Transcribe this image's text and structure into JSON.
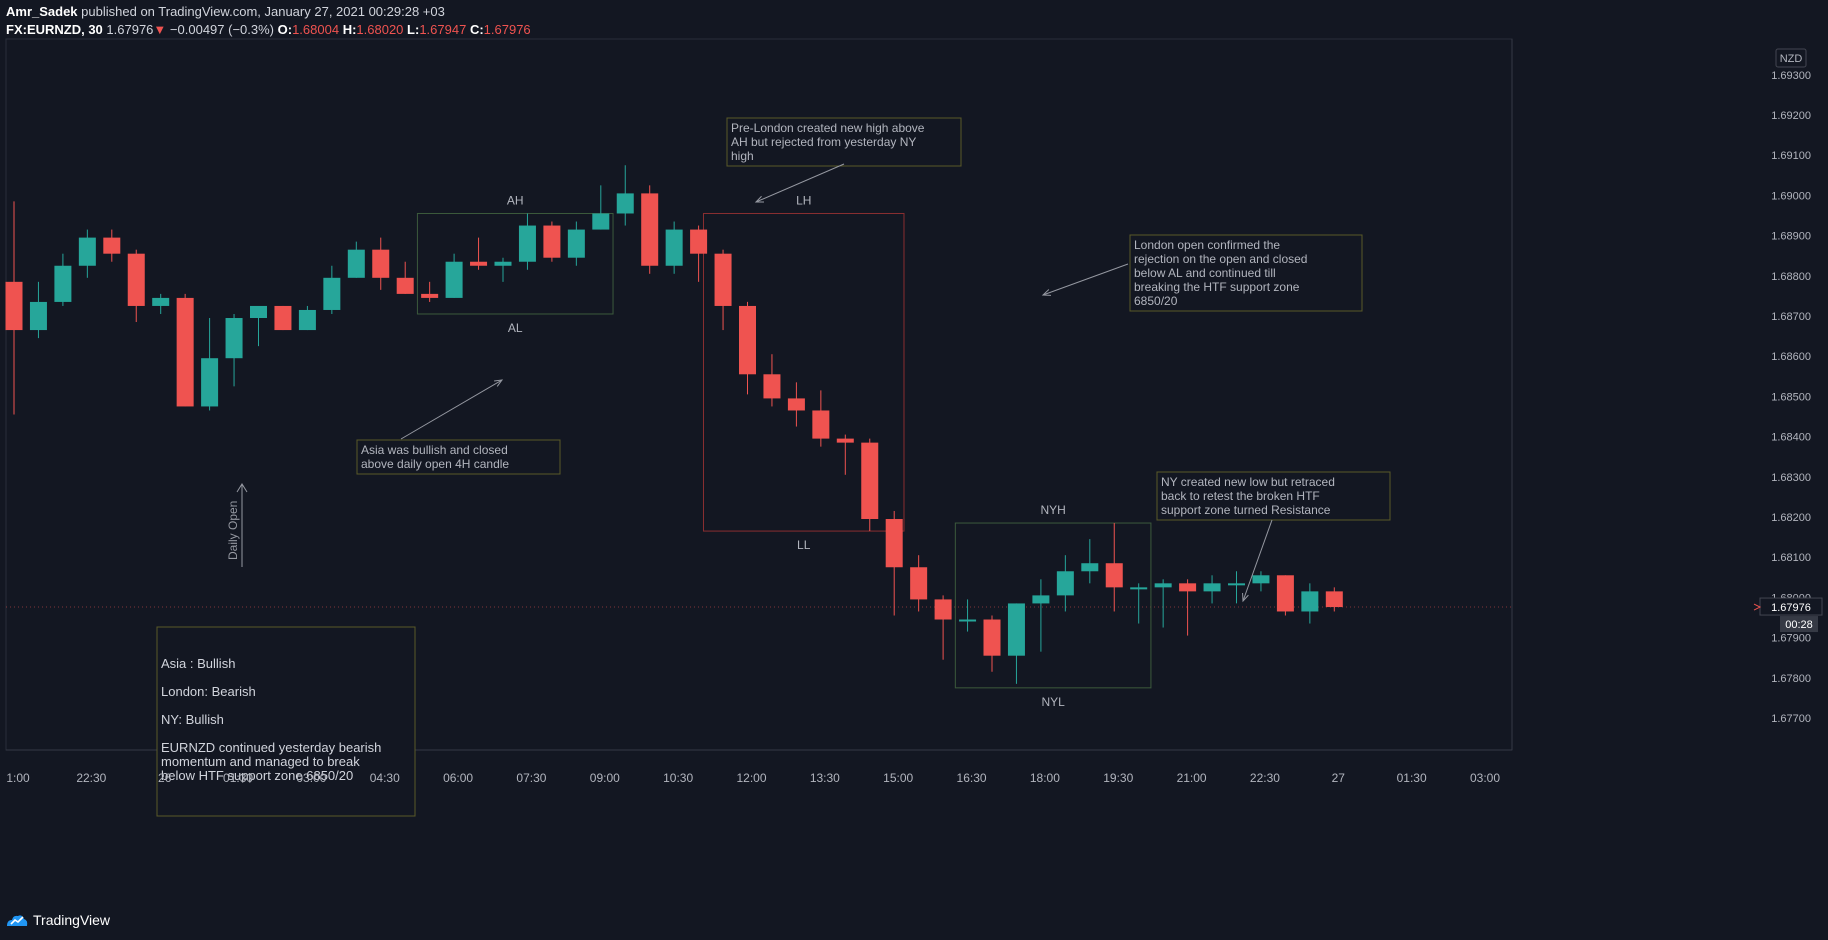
{
  "header": {
    "author": "Amr_Sadek",
    "published_text": "published on TradingView.com, January 27, 2021 00:29:28 +03",
    "symbol": "FX:EURNZD, 30",
    "last": "1.67976",
    "arrow": "▼",
    "change": "−0.00497 (−0.3%)",
    "o_label": "O:",
    "o": "1.68004",
    "h_label": "H:",
    "h": "1.68020",
    "l_label": "L:",
    "l": "1.67947",
    "c_label": "C:",
    "c": "1.67976"
  },
  "footer": {
    "brand": "TradingView"
  },
  "colors": {
    "up": "#26a69a",
    "down": "#ef5350",
    "background": "#131722",
    "text": "#b2b5be",
    "zone_green": "#3c5a3c",
    "zone_red": "#8a2e30",
    "note_border": "#5a5a28"
  },
  "chart_data": {
    "type": "candlestick",
    "currency": "NZD",
    "ylim": [
      1.6765,
      1.6942
    ],
    "y_ticks": [
      1.677,
      1.678,
      1.679,
      1.68,
      1.681,
      1.682,
      1.683,
      1.684,
      1.685,
      1.686,
      1.687,
      1.688,
      1.689,
      1.69,
      1.691,
      1.692,
      1.693
    ],
    "y_tick_labels": [
      "1.67700",
      "1.67800",
      "1.67900",
      "1.68000",
      "1.68100",
      "1.68200",
      "1.68300",
      "1.68400",
      "1.68500",
      "1.68600",
      "1.68700",
      "1.68800",
      "1.68900",
      "1.69000",
      "1.69100",
      "1.69200",
      "1.69300"
    ],
    "last_price_label": "1.67976",
    "countdown_label": "00:28",
    "last_price": 1.67976,
    "x_labels": [
      {
        "i": 0,
        "t": "1:00"
      },
      {
        "i": 3,
        "t": "22:30"
      },
      {
        "i": 6,
        "t": "26"
      },
      {
        "i": 9,
        "t": "01:30"
      },
      {
        "i": 12,
        "t": "03:00"
      },
      {
        "i": 15,
        "t": "04:30"
      },
      {
        "i": 18,
        "t": "06:00"
      },
      {
        "i": 21,
        "t": "07:30"
      },
      {
        "i": 24,
        "t": "09:00"
      },
      {
        "i": 27,
        "t": "10:30"
      },
      {
        "i": 30,
        "t": "12:00"
      },
      {
        "i": 33,
        "t": "13:30"
      },
      {
        "i": 36,
        "t": "15:00"
      },
      {
        "i": 39,
        "t": "16:30"
      },
      {
        "i": 42,
        "t": "18:00"
      },
      {
        "i": 45,
        "t": "19:30"
      },
      {
        "i": 48,
        "t": "21:00"
      },
      {
        "i": 51,
        "t": "22:30"
      },
      {
        "i": 54,
        "t": "27"
      },
      {
        "i": 57,
        "t": "01:30"
      },
      {
        "i": 60,
        "t": "03:00"
      }
    ],
    "candles": [
      {
        "o": 1.68785,
        "h": 1.68985,
        "l": 1.68455,
        "c": 1.68665
      },
      {
        "o": 1.68665,
        "h": 1.68785,
        "l": 1.68645,
        "c": 1.68735
      },
      {
        "o": 1.68735,
        "h": 1.68855,
        "l": 1.68725,
        "c": 1.68825
      },
      {
        "o": 1.68825,
        "h": 1.68915,
        "l": 1.68795,
        "c": 1.68895
      },
      {
        "o": 1.68895,
        "h": 1.68915,
        "l": 1.68835,
        "c": 1.68855
      },
      {
        "o": 1.68855,
        "h": 1.68865,
        "l": 1.68685,
        "c": 1.68725
      },
      {
        "o": 1.68725,
        "h": 1.68755,
        "l": 1.68705,
        "c": 1.68745
      },
      {
        "o": 1.68745,
        "h": 1.68755,
        "l": 1.68475,
        "c": 1.68475
      },
      {
        "o": 1.68475,
        "h": 1.68695,
        "l": 1.68465,
        "c": 1.68595
      },
      {
        "o": 1.68595,
        "h": 1.68705,
        "l": 1.68525,
        "c": 1.68695
      },
      {
        "o": 1.68695,
        "h": 1.68725,
        "l": 1.68625,
        "c": 1.68725
      },
      {
        "o": 1.68725,
        "h": 1.68725,
        "l": 1.68665,
        "c": 1.68665
      },
      {
        "o": 1.68665,
        "h": 1.68725,
        "l": 1.68665,
        "c": 1.68715
      },
      {
        "o": 1.68715,
        "h": 1.68825,
        "l": 1.68705,
        "c": 1.68795
      },
      {
        "o": 1.68795,
        "h": 1.68885,
        "l": 1.68795,
        "c": 1.68865
      },
      {
        "o": 1.68865,
        "h": 1.68895,
        "l": 1.68765,
        "c": 1.68795
      },
      {
        "o": 1.68795,
        "h": 1.68835,
        "l": 1.68755,
        "c": 1.68755
      },
      {
        "o": 1.68755,
        "h": 1.68785,
        "l": 1.68735,
        "c": 1.68745
      },
      {
        "o": 1.68745,
        "h": 1.68855,
        "l": 1.68745,
        "c": 1.68835
      },
      {
        "o": 1.68835,
        "h": 1.68895,
        "l": 1.68815,
        "c": 1.68825
      },
      {
        "o": 1.68825,
        "h": 1.68845,
        "l": 1.68785,
        "c": 1.68835
      },
      {
        "o": 1.68835,
        "h": 1.68955,
        "l": 1.68815,
        "c": 1.68925
      },
      {
        "o": 1.68925,
        "h": 1.68935,
        "l": 1.68835,
        "c": 1.68845
      },
      {
        "o": 1.68845,
        "h": 1.68935,
        "l": 1.68825,
        "c": 1.68915
      },
      {
        "o": 1.68915,
        "h": 1.69025,
        "l": 1.68915,
        "c": 1.68955
      },
      {
        "o": 1.68955,
        "h": 1.69075,
        "l": 1.68925,
        "c": 1.69005
      },
      {
        "o": 1.69005,
        "h": 1.69025,
        "l": 1.68805,
        "c": 1.68825
      },
      {
        "o": 1.68825,
        "h": 1.68935,
        "l": 1.68805,
        "c": 1.68915
      },
      {
        "o": 1.68915,
        "h": 1.68925,
        "l": 1.68785,
        "c": 1.68855
      },
      {
        "o": 1.68855,
        "h": 1.68865,
        "l": 1.68665,
        "c": 1.68725
      },
      {
        "o": 1.68725,
        "h": 1.68735,
        "l": 1.68505,
        "c": 1.68555
      },
      {
        "o": 1.68555,
        "h": 1.68605,
        "l": 1.68475,
        "c": 1.68495
      },
      {
        "o": 1.68495,
        "h": 1.68535,
        "l": 1.68425,
        "c": 1.68465
      },
      {
        "o": 1.68465,
        "h": 1.68515,
        "l": 1.68375,
        "c": 1.68395
      },
      {
        "o": 1.68395,
        "h": 1.68405,
        "l": 1.68305,
        "c": 1.68385
      },
      {
        "o": 1.68385,
        "h": 1.68395,
        "l": 1.68165,
        "c": 1.68195
      },
      {
        "o": 1.68195,
        "h": 1.68215,
        "l": 1.67955,
        "c": 1.68075
      },
      {
        "o": 1.68075,
        "h": 1.68105,
        "l": 1.67965,
        "c": 1.67995
      },
      {
        "o": 1.67995,
        "h": 1.68005,
        "l": 1.67845,
        "c": 1.67945
      },
      {
        "o": 1.67945,
        "h": 1.67995,
        "l": 1.67915,
        "c": 1.67945
      },
      {
        "o": 1.67945,
        "h": 1.67955,
        "l": 1.67815,
        "c": 1.67855
      },
      {
        "o": 1.67855,
        "h": 1.67985,
        "l": 1.67785,
        "c": 1.67985
      },
      {
        "o": 1.67985,
        "h": 1.68045,
        "l": 1.67865,
        "c": 1.68005
      },
      {
        "o": 1.68005,
        "h": 1.68105,
        "l": 1.67965,
        "c": 1.68065
      },
      {
        "o": 1.68065,
        "h": 1.68145,
        "l": 1.68035,
        "c": 1.68085
      },
      {
        "o": 1.68085,
        "h": 1.68185,
        "l": 1.67965,
        "c": 1.68025
      },
      {
        "o": 1.68025,
        "h": 1.68035,
        "l": 1.67935,
        "c": 1.68025
      },
      {
        "o": 1.68025,
        "h": 1.68045,
        "l": 1.67925,
        "c": 1.68035
      },
      {
        "o": 1.68035,
        "h": 1.68045,
        "l": 1.67905,
        "c": 1.68015
      },
      {
        "o": 1.68015,
        "h": 1.68055,
        "l": 1.67985,
        "c": 1.68035
      },
      {
        "o": 1.68035,
        "h": 1.68065,
        "l": 1.67985,
        "c": 1.68035
      },
      {
        "o": 1.68035,
        "h": 1.68065,
        "l": 1.68015,
        "c": 1.68055
      },
      {
        "o": 1.68055,
        "h": 1.68055,
        "l": 1.67955,
        "c": 1.67965
      },
      {
        "o": 1.67965,
        "h": 1.68035,
        "l": 1.67935,
        "c": 1.68015
      },
      {
        "o": 1.68015,
        "h": 1.68025,
        "l": 1.67965,
        "c": 1.67976
      }
    ],
    "boxes": [
      {
        "name": "asia-zone",
        "i0": 16.5,
        "i1": 24.5,
        "p0": 1.68955,
        "p1": 1.68705,
        "color": "#3c5a3c",
        "top_label": "AH",
        "bottom_label": "AL"
      },
      {
        "name": "london-zone",
        "i0": 28.2,
        "i1": 36.4,
        "p0": 1.68955,
        "p1": 1.68165,
        "color": "#8a2e30",
        "top_label": "LH",
        "bottom_label": "LL"
      },
      {
        "name": "ny-zone",
        "i0": 38.5,
        "i1": 46.5,
        "p0": 1.68185,
        "p1": 1.67775,
        "color": "#3c5a3c",
        "top_label": "NYH",
        "bottom_label": "NYL"
      }
    ],
    "notes": [
      {
        "name": "note-asia",
        "lines": [
          "Asia was bullish and closed",
          "above daily open 4H candle"
        ]
      },
      {
        "name": "note-pre-london",
        "lines": [
          "Pre-London created new high above",
          "AH but rejected from yesterday NY",
          "high"
        ]
      },
      {
        "name": "note-london",
        "lines": [
          "London open confirmed the",
          "rejection on the open and closed",
          "below AL and continued till",
          "breaking the HTF support zone",
          "6850/20"
        ]
      },
      {
        "name": "note-ny",
        "lines": [
          "NY created new low but retraced",
          "back to retest the broken HTF",
          "support zone turned Resistance"
        ]
      }
    ],
    "vertical_label": "Daily Open",
    "summary": {
      "lines": [
        "Asia : Bullish",
        "London: Bearish",
        "NY: Bullish"
      ],
      "paragraph": [
        "EURNZD continued yesterday bearish",
        "momentum and managed to break",
        "below HTF support zone 6850/20"
      ]
    }
  }
}
